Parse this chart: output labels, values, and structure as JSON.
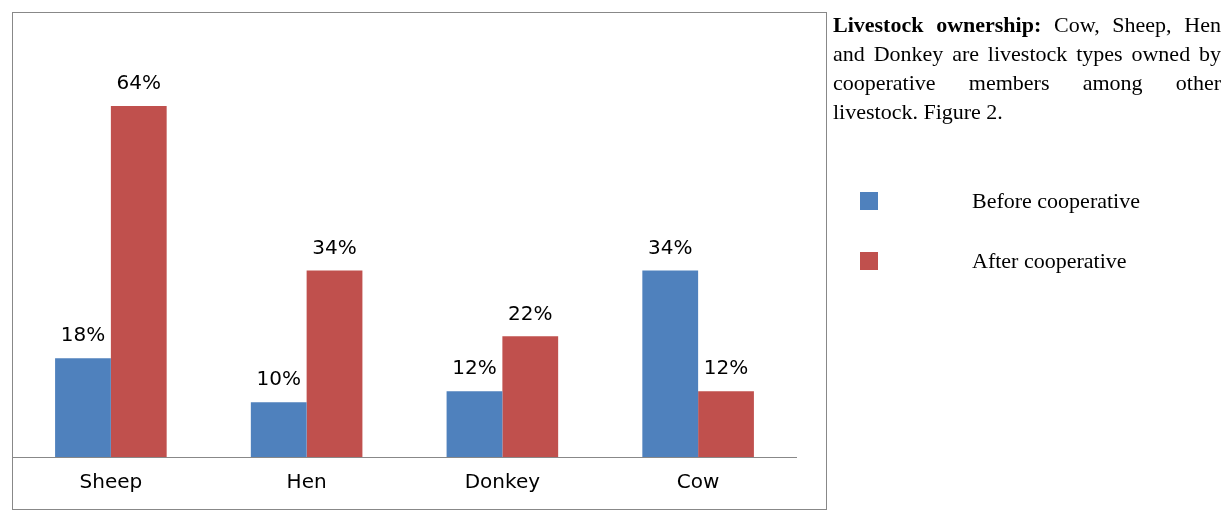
{
  "chart_data": {
    "type": "bar",
    "categories": [
      "Sheep",
      "Hen",
      "Donkey",
      "Cow"
    ],
    "series": [
      {
        "name": "Before cooperative",
        "color": "#4f81bd",
        "values": [
          18,
          10,
          12,
          34
        ],
        "value_labels": [
          "18%",
          "10%",
          "12%",
          "34%"
        ]
      },
      {
        "name": "After cooperative",
        "color": "#c0504d",
        "values": [
          64,
          34,
          22,
          12
        ],
        "value_labels": [
          "64%",
          "34%",
          "22%",
          "12%"
        ]
      }
    ],
    "annotations": [
      "Livestock ownership:",
      "Cow, Sheep, Hen and Donkey are livestock types owned by cooperative members among other livestock. Figure 2."
    ],
    "legend": "right",
    "grid": false
  }
}
